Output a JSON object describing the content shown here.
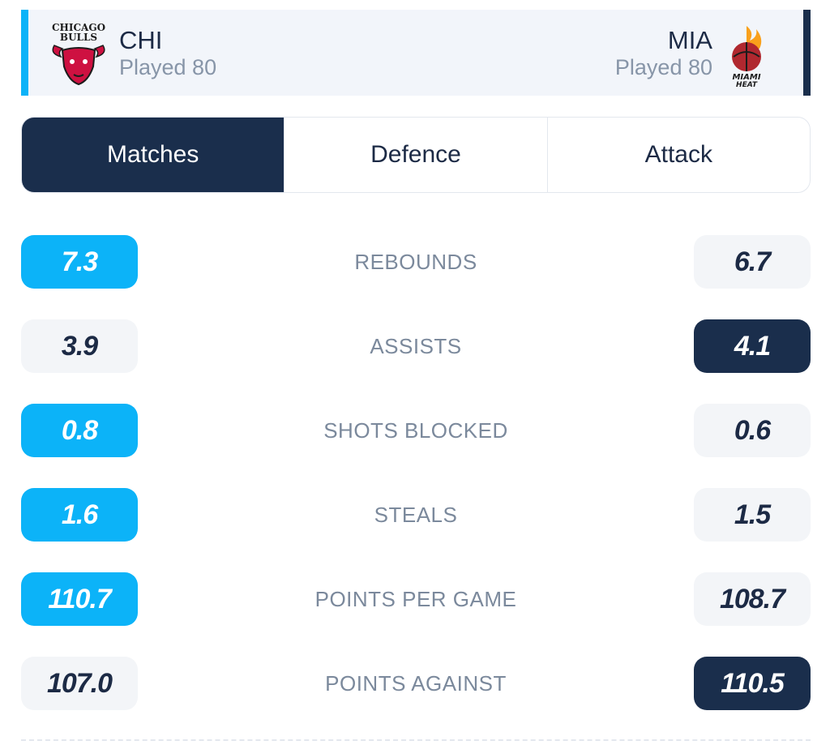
{
  "home": {
    "abbr": "CHI",
    "played": "Played 80",
    "logo_text_top": "CHICAGO",
    "logo_text_bottom": "BULLS",
    "accent_color": "#0cb3f8",
    "logo_icon": "chicago-bulls-logo"
  },
  "away": {
    "abbr": "MIA",
    "played": "Played 80",
    "logo_text_top": "MIAMI",
    "logo_text_bottom": "HEAT",
    "accent_color": "#1a2e4c",
    "logo_icon": "miami-heat-logo"
  },
  "tabs": [
    {
      "label": "Matches",
      "active": true
    },
    {
      "label": "Defence",
      "active": false
    },
    {
      "label": "Attack",
      "active": false
    }
  ],
  "stats": [
    {
      "label": "REBOUNDS",
      "home": "7.3",
      "away": "6.7",
      "winner": "home"
    },
    {
      "label": "ASSISTS",
      "home": "3.9",
      "away": "4.1",
      "winner": "away"
    },
    {
      "label": "SHOTS BLOCKED",
      "home": "0.8",
      "away": "0.6",
      "winner": "home"
    },
    {
      "label": "STEALS",
      "home": "1.6",
      "away": "1.5",
      "winner": "home"
    },
    {
      "label": "POINTS PER GAME",
      "home": "110.7",
      "away": "108.7",
      "winner": "home"
    },
    {
      "label": "POINTS AGAINST",
      "home": "107.0",
      "away": "110.5",
      "winner": "away"
    }
  ]
}
